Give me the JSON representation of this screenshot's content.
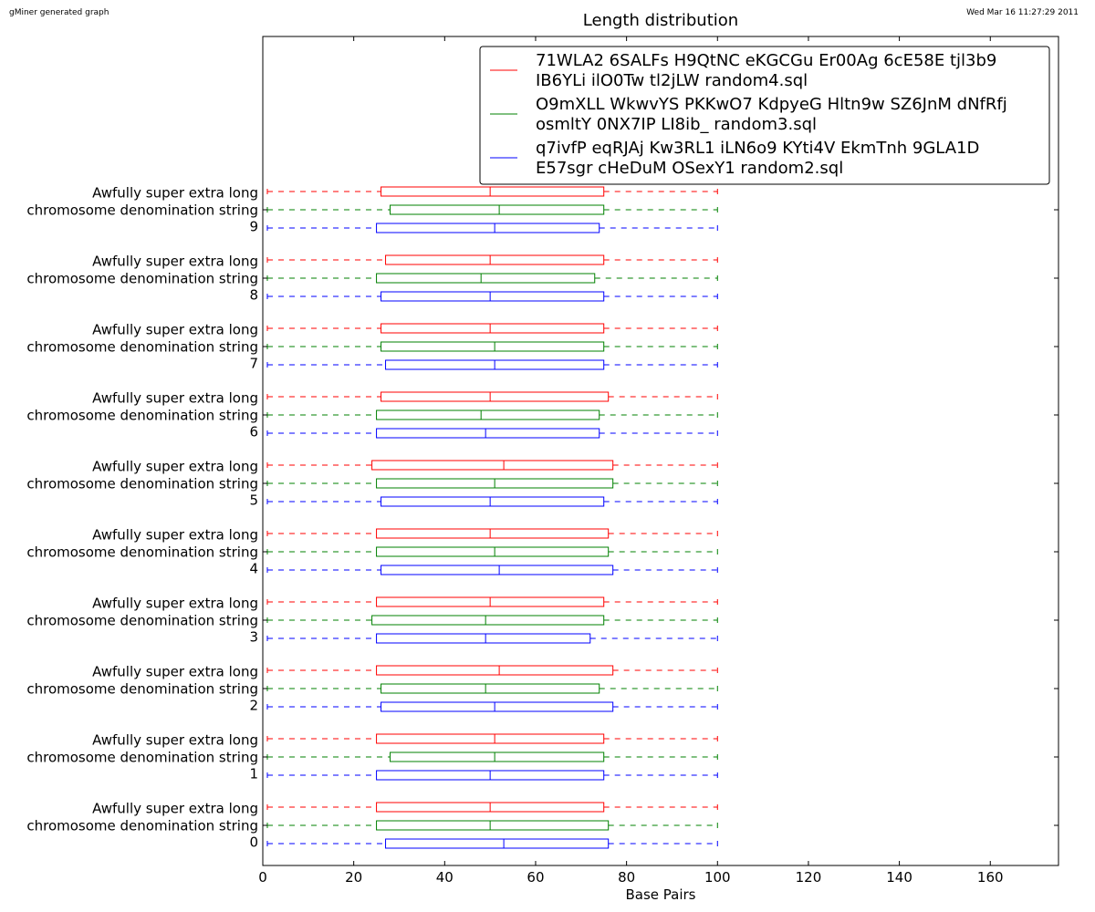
{
  "header": {
    "generator": "gMiner generated graph",
    "timestamp": "Wed Mar 16 11:27:29 2011"
  },
  "chart_data": {
    "type": "box",
    "orientation": "horizontal",
    "title": "Length distribution",
    "xlabel": "Base Pairs",
    "ylabel": "",
    "xlim": [
      0,
      175
    ],
    "xticks": [
      0,
      20,
      40,
      60,
      80,
      100,
      120,
      140,
      160
    ],
    "grid": false,
    "legend_placement": "top-right",
    "categories": [
      "0",
      "1",
      "2",
      "3",
      "4",
      "5",
      "6",
      "7",
      "8",
      "9"
    ],
    "category_label_lines": [
      "Awfully super extra long",
      "chromosome denomination string"
    ],
    "series": [
      {
        "name": "71WLA2 6SALFs H9QtNC eKGCGu Er00Ag 6cE58E tjl3b9 IB6YLi ilO0Tw tl2jLW random4.sql",
        "legend_lines": [
          "71WLA2 6SALFs H9QtNC eKGCGu Er00Ag 6cE58E tjl3b9",
          "IB6YLi ilO0Tw tl2jLW random4.sql"
        ],
        "color": "#ff0000",
        "boxes": [
          {
            "min": 1,
            "q1": 25,
            "median": 50,
            "q3": 75,
            "max": 100
          },
          {
            "min": 1,
            "q1": 25,
            "median": 51,
            "q3": 75,
            "max": 100
          },
          {
            "min": 1,
            "q1": 25,
            "median": 52,
            "q3": 77,
            "max": 100
          },
          {
            "min": 1,
            "q1": 25,
            "median": 50,
            "q3": 75,
            "max": 100
          },
          {
            "min": 1,
            "q1": 25,
            "median": 50,
            "q3": 76,
            "max": 100
          },
          {
            "min": 1,
            "q1": 24,
            "median": 53,
            "q3": 77,
            "max": 100
          },
          {
            "min": 1,
            "q1": 26,
            "median": 50,
            "q3": 76,
            "max": 100
          },
          {
            "min": 1,
            "q1": 26,
            "median": 50,
            "q3": 75,
            "max": 100
          },
          {
            "min": 1,
            "q1": 27,
            "median": 50,
            "q3": 75,
            "max": 100
          },
          {
            "min": 1,
            "q1": 26,
            "median": 50,
            "q3": 75,
            "max": 100
          }
        ]
      },
      {
        "name": "O9mXLL WkwvYS PKKwO7 KdpyeG Hltn9w SZ6JnM dNfRfj osmltY 0NX7IP LI8ib_ random3.sql",
        "legend_lines": [
          "O9mXLL WkwvYS PKKwO7 KdpyeG Hltn9w SZ6JnM dNfRfj",
          "osmltY 0NX7IP LI8ib_ random3.sql"
        ],
        "color": "#008000",
        "boxes": [
          {
            "min": 1,
            "q1": 25,
            "median": 50,
            "q3": 76,
            "max": 100
          },
          {
            "min": 1,
            "q1": 28,
            "median": 51,
            "q3": 75,
            "max": 100
          },
          {
            "min": 1,
            "q1": 26,
            "median": 49,
            "q3": 74,
            "max": 100
          },
          {
            "min": 1,
            "q1": 24,
            "median": 49,
            "q3": 75,
            "max": 100
          },
          {
            "min": 1,
            "q1": 25,
            "median": 51,
            "q3": 76,
            "max": 100
          },
          {
            "min": 1,
            "q1": 25,
            "median": 51,
            "q3": 77,
            "max": 100
          },
          {
            "min": 1,
            "q1": 25,
            "median": 48,
            "q3": 74,
            "max": 100
          },
          {
            "min": 1,
            "q1": 26,
            "median": 51,
            "q3": 75,
            "max": 100
          },
          {
            "min": 1,
            "q1": 25,
            "median": 48,
            "q3": 73,
            "max": 100
          },
          {
            "min": 1,
            "q1": 28,
            "median": 52,
            "q3": 75,
            "max": 100
          }
        ]
      },
      {
        "name": "q7ivfP eqRJAj Kw3RL1 iLN6o9 KYti4V EkmTnh 9GLA1D E57sgr cHeDuM OSexY1 random2.sql",
        "legend_lines": [
          "q7ivfP eqRJAj Kw3RL1 iLN6o9 KYti4V EkmTnh 9GLA1D",
          "E57sgr cHeDuM OSexY1 random2.sql"
        ],
        "color": "#0000ff",
        "boxes": [
          {
            "min": 1,
            "q1": 27,
            "median": 53,
            "q3": 76,
            "max": 100
          },
          {
            "min": 1,
            "q1": 25,
            "median": 50,
            "q3": 75,
            "max": 100
          },
          {
            "min": 1,
            "q1": 26,
            "median": 51,
            "q3": 77,
            "max": 100
          },
          {
            "min": 1,
            "q1": 25,
            "median": 49,
            "q3": 72,
            "max": 100
          },
          {
            "min": 1,
            "q1": 26,
            "median": 52,
            "q3": 77,
            "max": 100
          },
          {
            "min": 1,
            "q1": 26,
            "median": 50,
            "q3": 75,
            "max": 100
          },
          {
            "min": 1,
            "q1": 25,
            "median": 49,
            "q3": 74,
            "max": 100
          },
          {
            "min": 1,
            "q1": 27,
            "median": 51,
            "q3": 75,
            "max": 100
          },
          {
            "min": 1,
            "q1": 26,
            "median": 50,
            "q3": 75,
            "max": 100
          },
          {
            "min": 1,
            "q1": 25,
            "median": 51,
            "q3": 74,
            "max": 100
          }
        ]
      }
    ]
  }
}
